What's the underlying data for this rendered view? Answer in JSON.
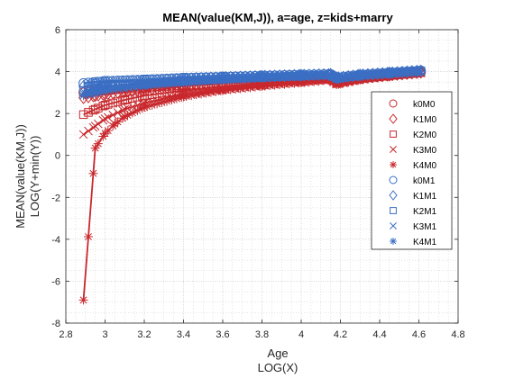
{
  "chart_data": {
    "type": "line",
    "title": "MEAN(value(KM,J)), a=age, z=kids+marry",
    "xlabel": [
      "Age",
      "LOG(X)"
    ],
    "ylabel": [
      "MEAN(value(KM,J))",
      "LOG(Y+min(Y))"
    ],
    "xlim": [
      2.8,
      4.8
    ],
    "ylim": [
      -8,
      6
    ],
    "xticks": [
      "2.8",
      "3",
      "3.2",
      "3.4",
      "3.6",
      "3.8",
      "4",
      "4.2",
      "4.4",
      "4.6",
      "4.8"
    ],
    "yticks": [
      "-8",
      "-6",
      "-4",
      "-2",
      "0",
      "2",
      "4",
      "6"
    ],
    "grid": "major and minor, dotted",
    "legend_position": "right",
    "x_range": [
      2.89,
      4.61
    ],
    "series": [
      {
        "name": "k0M0",
        "marker": "circle",
        "color": "#c8282d",
        "values": [
          [
            2.89,
            3.0
          ],
          [
            2.95,
            3.05
          ],
          [
            3.0,
            3.1
          ],
          [
            3.1,
            3.2
          ],
          [
            3.2,
            3.27
          ],
          [
            3.4,
            3.37
          ],
          [
            3.6,
            3.47
          ],
          [
            3.8,
            3.57
          ],
          [
            4.0,
            3.67
          ],
          [
            4.15,
            3.73
          ],
          [
            4.18,
            3.55
          ],
          [
            4.3,
            3.73
          ],
          [
            4.45,
            3.85
          ],
          [
            4.61,
            3.97
          ]
        ]
      },
      {
        "name": "K1M0",
        "marker": "diamond",
        "color": "#c8282d",
        "values": [
          [
            2.89,
            2.75
          ],
          [
            2.95,
            2.85
          ],
          [
            3.0,
            2.93
          ],
          [
            3.1,
            3.05
          ],
          [
            3.2,
            3.15
          ],
          [
            3.4,
            3.3
          ],
          [
            3.6,
            3.42
          ],
          [
            3.8,
            3.53
          ],
          [
            4.0,
            3.64
          ],
          [
            4.15,
            3.71
          ],
          [
            4.18,
            3.5
          ],
          [
            4.3,
            3.7
          ],
          [
            4.45,
            3.83
          ],
          [
            4.61,
            3.96
          ]
        ]
      },
      {
        "name": "K2M0",
        "marker": "square",
        "color": "#c8282d",
        "values": [
          [
            2.89,
            1.95
          ],
          [
            2.95,
            2.2
          ],
          [
            3.0,
            2.4
          ],
          [
            3.1,
            2.65
          ],
          [
            3.2,
            2.85
          ],
          [
            3.4,
            3.1
          ],
          [
            3.6,
            3.3
          ],
          [
            3.8,
            3.45
          ],
          [
            4.0,
            3.58
          ],
          [
            4.15,
            3.67
          ],
          [
            4.18,
            3.45
          ],
          [
            4.3,
            3.67
          ],
          [
            4.45,
            3.81
          ],
          [
            4.61,
            3.95
          ]
        ]
      },
      {
        "name": "K3M0",
        "marker": "x",
        "color": "#c8282d",
        "values": [
          [
            2.89,
            1.0
          ],
          [
            2.95,
            1.4
          ],
          [
            3.0,
            1.75
          ],
          [
            3.1,
            2.2
          ],
          [
            3.2,
            2.5
          ],
          [
            3.4,
            2.9
          ],
          [
            3.6,
            3.15
          ],
          [
            3.8,
            3.35
          ],
          [
            4.0,
            3.5
          ],
          [
            4.15,
            3.62
          ],
          [
            4.18,
            3.4
          ],
          [
            4.3,
            3.63
          ],
          [
            4.45,
            3.79
          ],
          [
            4.61,
            3.94
          ]
        ]
      },
      {
        "name": "K4M0",
        "marker": "asterisk",
        "color": "#c8282d",
        "values": [
          [
            2.89,
            -6.9
          ],
          [
            2.95,
            0.35
          ],
          [
            3.0,
            1.05
          ],
          [
            3.05,
            1.5
          ],
          [
            3.1,
            1.85
          ],
          [
            3.2,
            2.3
          ],
          [
            3.4,
            2.8
          ],
          [
            3.6,
            3.1
          ],
          [
            3.8,
            3.3
          ],
          [
            4.0,
            3.47
          ],
          [
            4.15,
            3.6
          ],
          [
            4.18,
            3.38
          ],
          [
            4.3,
            3.6
          ],
          [
            4.45,
            3.77
          ],
          [
            4.61,
            3.93
          ]
        ]
      },
      {
        "name": "k0M1",
        "marker": "circle",
        "color": "#3a6fc4",
        "values": [
          [
            2.89,
            3.45
          ],
          [
            2.95,
            3.5
          ],
          [
            3.0,
            3.55
          ],
          [
            3.2,
            3.62
          ],
          [
            3.4,
            3.7
          ],
          [
            3.6,
            3.75
          ],
          [
            3.8,
            3.8
          ],
          [
            4.0,
            3.85
          ],
          [
            4.15,
            3.88
          ],
          [
            4.18,
            3.72
          ],
          [
            4.3,
            3.85
          ],
          [
            4.45,
            3.95
          ],
          [
            4.61,
            4.05
          ]
        ]
      },
      {
        "name": "K1M1",
        "marker": "diamond",
        "color": "#3a6fc4",
        "values": [
          [
            2.89,
            3.3
          ],
          [
            2.95,
            3.38
          ],
          [
            3.0,
            3.45
          ],
          [
            3.2,
            3.55
          ],
          [
            3.4,
            3.65
          ],
          [
            3.6,
            3.72
          ],
          [
            3.8,
            3.78
          ],
          [
            4.0,
            3.83
          ],
          [
            4.15,
            3.87
          ],
          [
            4.18,
            3.7
          ],
          [
            4.3,
            3.84
          ],
          [
            4.45,
            3.94
          ],
          [
            4.61,
            4.04
          ]
        ]
      },
      {
        "name": "K2M1",
        "marker": "square",
        "color": "#3a6fc4",
        "values": [
          [
            2.89,
            3.1
          ],
          [
            2.95,
            3.2
          ],
          [
            3.0,
            3.3
          ],
          [
            3.2,
            3.45
          ],
          [
            3.4,
            3.57
          ],
          [
            3.6,
            3.66
          ],
          [
            3.8,
            3.74
          ],
          [
            4.0,
            3.8
          ],
          [
            4.15,
            3.85
          ],
          [
            4.18,
            3.68
          ],
          [
            4.3,
            3.83
          ],
          [
            4.45,
            3.93
          ],
          [
            4.61,
            4.03
          ]
        ]
      },
      {
        "name": "K3M1",
        "marker": "x",
        "color": "#3a6fc4",
        "values": [
          [
            2.89,
            2.95
          ],
          [
            2.95,
            3.05
          ],
          [
            3.0,
            3.18
          ],
          [
            3.2,
            3.38
          ],
          [
            3.4,
            3.52
          ],
          [
            3.6,
            3.62
          ],
          [
            3.8,
            3.71
          ],
          [
            4.0,
            3.78
          ],
          [
            4.15,
            3.84
          ],
          [
            4.18,
            3.66
          ],
          [
            4.3,
            3.82
          ],
          [
            4.45,
            3.92
          ],
          [
            4.61,
            4.02
          ]
        ]
      },
      {
        "name": "K4M1",
        "marker": "asterisk",
        "color": "#3a6fc4",
        "values": [
          [
            2.89,
            2.85
          ],
          [
            2.95,
            2.98
          ],
          [
            3.0,
            3.1
          ],
          [
            3.2,
            3.33
          ],
          [
            3.4,
            3.48
          ],
          [
            3.6,
            3.6
          ],
          [
            3.8,
            3.69
          ],
          [
            4.0,
            3.77
          ],
          [
            4.15,
            3.83
          ],
          [
            4.18,
            3.65
          ],
          [
            4.3,
            3.81
          ],
          [
            4.45,
            3.91
          ],
          [
            4.61,
            4.01
          ]
        ]
      }
    ]
  }
}
